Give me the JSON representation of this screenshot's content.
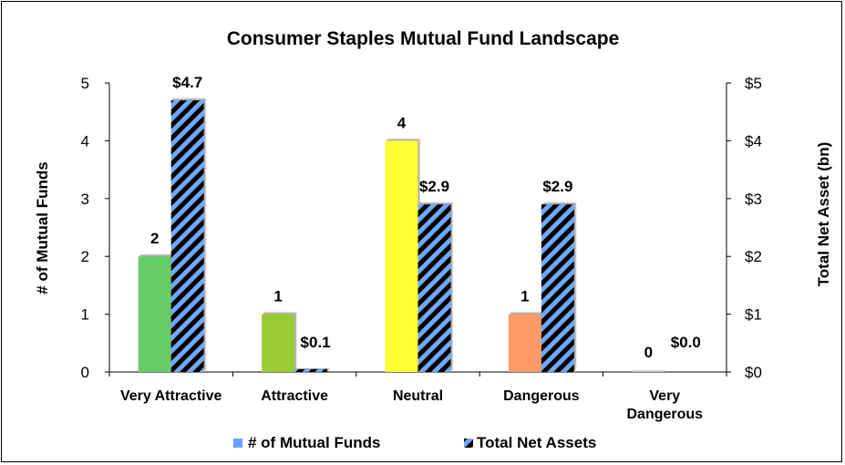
{
  "chart_data": {
    "type": "bar",
    "title": "Consumer Staples Mutual Fund Landscape",
    "categories": [
      [
        "Very Attractive"
      ],
      [
        "Attractive"
      ],
      [
        "Neutral"
      ],
      [
        "Dangerous"
      ],
      [
        "Very",
        "Dangerous"
      ]
    ],
    "series": [
      {
        "name": "# of Mutual Funds",
        "axis": "left",
        "values": [
          2,
          1,
          4,
          1,
          0
        ],
        "labels": [
          "2",
          "1",
          "4",
          "1",
          "0"
        ],
        "colors": [
          "#66cc66",
          "#99cc33",
          "#ffff33",
          "#ff9966",
          "#bfbfbf"
        ],
        "legend_color": "#66a3ff"
      },
      {
        "name": "Total Net Assets",
        "axis": "right",
        "values": [
          4.7,
          0.05,
          2.9,
          2.9,
          0.0
        ],
        "labels": [
          "$4.7",
          "$0.1",
          "$2.9",
          "$2.9",
          "$0.0"
        ],
        "fill": "hatched",
        "stripe_color": "#6fa8f5",
        "base_color": "#000000"
      }
    ],
    "ylabel": "# of Mutual Funds",
    "ylim": [
      0,
      5
    ],
    "yticks": [
      "0",
      "1",
      "2",
      "3",
      "4",
      "5"
    ],
    "y2label": "Total Net Asset (bn)",
    "y2lim": [
      0,
      5
    ],
    "y2ticks": [
      "$0",
      "$1",
      "$2",
      "$3",
      "$4",
      "$5"
    ],
    "grid": false,
    "legend_position": "bottom"
  }
}
